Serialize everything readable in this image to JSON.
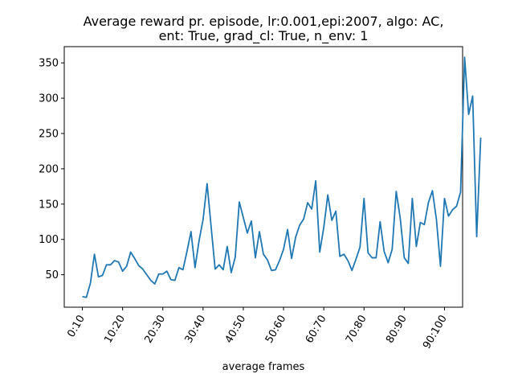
{
  "chart_data": {
    "type": "line",
    "title_line1": "Average reward pr. episode, lr:0.001,epi:2007, algo: AC,",
    "title_line2": "ent: True, grad_cl: True, n_env: 1",
    "xlabel": "average frames",
    "ylabel": "",
    "x_tick_labels": [
      "0:10",
      "10:20",
      "20:30",
      "30:40",
      "40:50",
      "50:60",
      "60:70",
      "70:80",
      "80:90",
      "90:100"
    ],
    "xlim": [
      -4.5,
      94.5
    ],
    "ylim": [
      4,
      373
    ],
    "y_ticks": [
      50,
      100,
      150,
      200,
      250,
      300,
      350
    ],
    "grid": false,
    "series": [
      {
        "color": "#1f77b4",
        "values": [
          19,
          18,
          38,
          79,
          47,
          49,
          64,
          64,
          70,
          68,
          55,
          62,
          82,
          73,
          63,
          58,
          50,
          42,
          37,
          51,
          51,
          55,
          43,
          42,
          60,
          57,
          83,
          111,
          60,
          98,
          128,
          179,
          118,
          58,
          64,
          57,
          90,
          53,
          75,
          153,
          131,
          109,
          126,
          74,
          111,
          79,
          71,
          56,
          57,
          70,
          86,
          114,
          73,
          103,
          120,
          129,
          152,
          143,
          183,
          82,
          117,
          163,
          127,
          140,
          76,
          79,
          70,
          56,
          72,
          89,
          158,
          81,
          74,
          74,
          125,
          83,
          67,
          86,
          168,
          130,
          74,
          66,
          158,
          90,
          124,
          121,
          152,
          169,
          128,
          62,
          158,
          133,
          142,
          147,
          167,
          358,
          277,
          303,
          104,
          244
        ]
      }
    ]
  }
}
